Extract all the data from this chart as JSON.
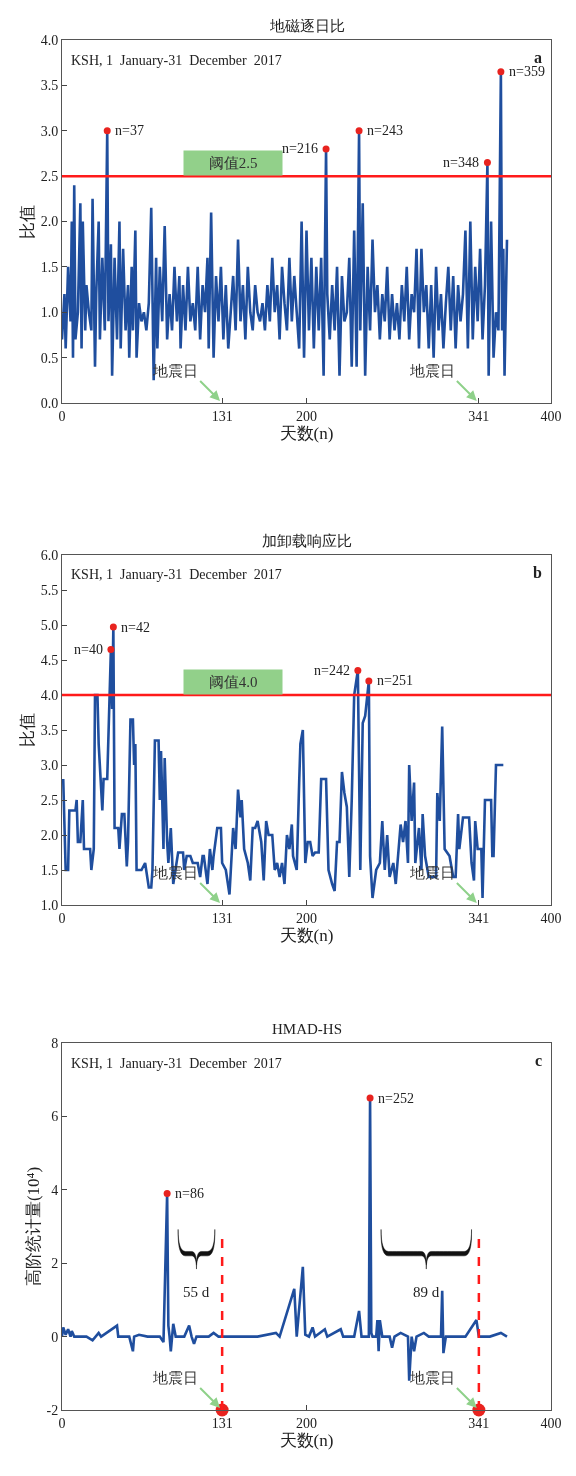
{
  "chart_data": [
    {
      "type": "line",
      "title": "地磁逐日比",
      "xlabel": "天数(n)",
      "ylabel": "比值",
      "xlim": [
        0,
        400
      ],
      "xticks": [
        0,
        131,
        200,
        341,
        400
      ],
      "ylim": [
        0,
        4
      ],
      "yticks": [
        {
          "value": 0,
          "label": "0.0"
        },
        0.5,
        {
          "value": 1,
          "label": "1.0"
        },
        1.5,
        {
          "value": 2,
          "label": "2.0"
        },
        2.5,
        {
          "value": 3,
          "label": "3.0"
        },
        3.5,
        {
          "value": 4,
          "label": "4.0"
        }
      ],
      "series": [
        {
          "color": "#1f4e9e",
          "marker": "none",
          "x": [
            0,
            2,
            3,
            5,
            7,
            8,
            9,
            10,
            11,
            13,
            15,
            16,
            17,
            19,
            20,
            22,
            24,
            25,
            27,
            28,
            30,
            31,
            33,
            35,
            37,
            38,
            40,
            41,
            43,
            45,
            47,
            48,
            50,
            52,
            54,
            55,
            57,
            58,
            60,
            61,
            63,
            65,
            67,
            69,
            71,
            73,
            75,
            77,
            78,
            80,
            82,
            84,
            86,
            88,
            90,
            92,
            94,
            96,
            97,
            99,
            101,
            103,
            105,
            107,
            109,
            111,
            113,
            115,
            117,
            119,
            120,
            122,
            124,
            126,
            128,
            130,
            132,
            134,
            136,
            138,
            140,
            142,
            144,
            146,
            148,
            150,
            152,
            154,
            156,
            158,
            160,
            162,
            164,
            166,
            168,
            170,
            172,
            174,
            176,
            178,
            180,
            182,
            184,
            186,
            188,
            190,
            192,
            194,
            196,
            198,
            200,
            202,
            204,
            206,
            208,
            210,
            212,
            214,
            216,
            217,
            219,
            221,
            223,
            225,
            227,
            229,
            231,
            233,
            235,
            237,
            239,
            241,
            243,
            244,
            246,
            248,
            250,
            252,
            254,
            256,
            258,
            260,
            262,
            264,
            266,
            268,
            270,
            272,
            274,
            276,
            278,
            280,
            282,
            284,
            286,
            288,
            290,
            292,
            294,
            296,
            298,
            300,
            302,
            304,
            306,
            308,
            310,
            312,
            314,
            316,
            318,
            320,
            322,
            324,
            326,
            328,
            330,
            332,
            334,
            336,
            338,
            340,
            342,
            344,
            346,
            348,
            349,
            351,
            353,
            355,
            357,
            359,
            360,
            361,
            362,
            364
          ],
          "values": [
            0.7,
            1.2,
            0.6,
            1.5,
            0.9,
            2.0,
            0.5,
            2.4,
            0.7,
            1.0,
            2.2,
            0.6,
            2.0,
            0.8,
            1.3,
            1.0,
            0.8,
            2.25,
            0.4,
            1.2,
            2.0,
            0.7,
            1.6,
            0.8,
            3.0,
            0.9,
            1.75,
            0.3,
            1.6,
            0.7,
            2.0,
            0.6,
            1.7,
            0.8,
            1.3,
            0.5,
            1.5,
            0.8,
            1.9,
            0.5,
            1.1,
            0.9,
            1.0,
            0.8,
            1.1,
            2.15,
            0.25,
            1.6,
            0.6,
            1.5,
            0.9,
            1.95,
            0.7,
            1.2,
            0.8,
            1.5,
            0.9,
            1.4,
            0.6,
            1.3,
            0.8,
            1.5,
            0.9,
            1.1,
            0.8,
            1.5,
            0.7,
            1.3,
            1.0,
            1.6,
            0.6,
            2.1,
            0.5,
            1.4,
            0.9,
            1.5,
            0.7,
            1.3,
            0.6,
            1.0,
            1.4,
            0.8,
            1.8,
            0.9,
            1.3,
            0.7,
            1.5,
            1.0,
            0.8,
            1.3,
            1.0,
            0.9,
            1.1,
            0.8,
            1.3,
            0.9,
            1.6,
            1.0,
            1.3,
            0.7,
            1.5,
            1.1,
            0.8,
            1.6,
            0.9,
            1.4,
            1.0,
            0.6,
            2.0,
            0.5,
            1.9,
            0.8,
            1.6,
            0.6,
            1.5,
            0.8,
            1.6,
            0.3,
            2.8,
            1.2,
            0.7,
            1.3,
            0.8,
            1.5,
            0.3,
            1.4,
            0.9,
            1.0,
            1.6,
            0.4,
            1.9,
            0.4,
            3.0,
            0.8,
            2.2,
            0.3,
            1.5,
            0.8,
            1.8,
            1.0,
            1.3,
            0.7,
            1.2,
            0.9,
            1.5,
            0.7,
            1.2,
            0.8,
            1.1,
            0.7,
            1.3,
            0.9,
            1.5,
            0.7,
            1.2,
            1.0,
            1.7,
            0.6,
            1.7,
            1.0,
            1.3,
            0.6,
            1.3,
            0.5,
            1.5,
            0.8,
            1.2,
            0.6,
            1.1,
            1.5,
            0.8,
            1.4,
            0.6,
            1.3,
            0.9,
            1.2,
            1.9,
            0.6,
            2.0,
            0.7,
            1.5,
            0.9,
            1.7,
            0.7,
            1.3,
            2.65,
            0.3,
            2.0,
            0.5,
            1.0,
            0.8,
            3.65,
            0.8,
            1.7,
            0.3,
            1.8
          ]
        },
        {
          "type": "scatter",
          "color": "#e8231f",
          "marker": "circle",
          "x": [
            37,
            216,
            243,
            348,
            359
          ],
          "values": [
            3.0,
            2.8,
            3.0,
            2.65,
            3.65
          ]
        }
      ],
      "ref_lines": [
        {
          "axis": "y",
          "value": 2.5,
          "label": "阈值2.5",
          "color": "#ff1a1a"
        }
      ],
      "annotations": [
        "KSH, 1  January-31  December  2017",
        "a",
        {
          "text": "n=37",
          "x": 37,
          "y": 3.0
        },
        {
          "text": "n=216",
          "x": 216,
          "y": 2.8
        },
        {
          "text": "n=243",
          "x": 243,
          "y": 3.0
        },
        {
          "text": "n=348",
          "x": 348,
          "y": 2.65
        },
        {
          "text": "n=359",
          "x": 359,
          "y": 3.65
        },
        "地震日",
        "地震日"
      ]
    },
    {
      "type": "line",
      "title": "加卸载响应比",
      "xlabel": "天数(n)",
      "ylabel": "比值",
      "xlim": [
        0,
        400
      ],
      "xticks": [
        0,
        131,
        200,
        341,
        400
      ],
      "ylim": [
        1,
        6
      ],
      "yticks": [
        {
          "value": 1,
          "label": "1.0"
        },
        1.5,
        {
          "value": 2,
          "label": "2.0"
        },
        2.5,
        {
          "value": 3,
          "label": "3.0"
        },
        3.5,
        {
          "value": 4,
          "label": "4.0"
        },
        4.5,
        {
          "value": 5,
          "label": "5.0"
        },
        5.5,
        {
          "value": 6,
          "label": "6.0"
        }
      ],
      "series": [
        {
          "color": "#1f4e9e",
          "marker": "none",
          "x": [
            1,
            3,
            5,
            6,
            11,
            12,
            13,
            15,
            17,
            18,
            23,
            24,
            26,
            27,
            29,
            30,
            33,
            34,
            37,
            40,
            41,
            42,
            43,
            46,
            47,
            49,
            51,
            53,
            54,
            56,
            58,
            59,
            60,
            61,
            65,
            68,
            71,
            73,
            74,
            76,
            79,
            80,
            81,
            83,
            84,
            86,
            87,
            89,
            91,
            95,
            99,
            100,
            102,
            105,
            107,
            111,
            113,
            115,
            116,
            119,
            121,
            123,
            124,
            127,
            130,
            131,
            134,
            137,
            140,
            142,
            144,
            146,
            147,
            149,
            152,
            154,
            156,
            158,
            160,
            163,
            165,
            167,
            169,
            172,
            174,
            176,
            178,
            180,
            182,
            184,
            186,
            188,
            189,
            192,
            194,
            195,
            197,
            199,
            201,
            203,
            205,
            207,
            210,
            212,
            216,
            218,
            221,
            223,
            225,
            227,
            229,
            231,
            233,
            235,
            237,
            239,
            242,
            244,
            246,
            248,
            251,
            252,
            254,
            257,
            260,
            262,
            264,
            266,
            268,
            271,
            273,
            277,
            279,
            281,
            283,
            284,
            286,
            288,
            289,
            292,
            294,
            295,
            297,
            300,
            303,
            306,
            307,
            309,
            311,
            313,
            317,
            320,
            322,
            324,
            325,
            328,
            333,
            335,
            337,
            338,
            340,
            343,
            344,
            346,
            351,
            352,
            353,
            355,
            361
          ],
          "values": [
            2.8,
            1.5,
            1.5,
            2.35,
            2.35,
            2.5,
            1.9,
            1.9,
            2.5,
            1.8,
            1.8,
            1.5,
            1.8,
            4.0,
            4.0,
            3.3,
            2.35,
            2.8,
            2.8,
            4.65,
            3.8,
            4.97,
            2.1,
            2.1,
            1.8,
            2.3,
            2.3,
            1.55,
            1.9,
            3.65,
            3.65,
            3.0,
            3.3,
            1.5,
            1.5,
            1.6,
            1.25,
            1.25,
            1.5,
            3.35,
            3.35,
            2.5,
            3.2,
            1.8,
            3.1,
            1.9,
            1.6,
            2.1,
            1.3,
            1.75,
            1.75,
            1.5,
            1.7,
            1.7,
            1.6,
            1.6,
            1.4,
            1.7,
            1.7,
            1.3,
            1.8,
            1.5,
            1.7,
            2.1,
            2.1,
            1.6,
            1.5,
            1.15,
            2.1,
            1.8,
            2.65,
            2.25,
            2.5,
            1.8,
            1.6,
            1.35,
            2.1,
            2.1,
            2.2,
            1.9,
            1.35,
            2.2,
            2.0,
            2.0,
            1.5,
            1.6,
            1.4,
            1.6,
            1.3,
            2.0,
            1.8,
            2.15,
            1.7,
            1.5,
            2.75,
            3.3,
            3.5,
            1.6,
            1.9,
            1.9,
            1.7,
            1.75,
            1.75,
            2.8,
            2.8,
            1.5,
            1.3,
            1.2,
            1.9,
            1.9,
            2.9,
            2.6,
            2.4,
            1.4,
            2.5,
            4.0,
            4.35,
            1.5,
            3.6,
            3.7,
            4.2,
            1.7,
            1.1,
            1.5,
            1.6,
            2.2,
            1.5,
            2.0,
            1.4,
            1.6,
            1.3,
            2.15,
            1.9,
            2.2,
            1.6,
            3.0,
            2.2,
            2.75,
            1.6,
            2.1,
            1.5,
            2.3,
            1.7,
            1.4,
            1.4,
            1.4,
            2.6,
            2.2,
            3.55,
            1.8,
            1.7,
            1.4,
            1.4,
            2.3,
            1.8,
            2.25,
            2.25,
            1.6,
            1.35,
            2.2,
            1.8,
            1.8,
            1.1,
            2.5,
            2.5,
            1.7,
            1.7,
            3.0,
            3.0
          ]
        },
        {
          "type": "scatter",
          "color": "#e8231f",
          "marker": "circle",
          "x": [
            40,
            42,
            242,
            251
          ],
          "values": [
            4.65,
            4.97,
            4.35,
            4.2
          ]
        }
      ],
      "ref_lines": [
        {
          "axis": "y",
          "value": 4.0,
          "label": "阈值4.0",
          "color": "#ff1a1a"
        }
      ],
      "annotations": [
        "KSH, 1  January-31  December  2017",
        "b",
        {
          "text": "n=40",
          "x": 40,
          "y": 4.65
        },
        {
          "text": "n=42",
          "x": 42,
          "y": 4.97
        },
        {
          "text": "n=242",
          "x": 242,
          "y": 4.35
        },
        {
          "text": "n=251",
          "x": 251,
          "y": 4.2
        },
        "地震日",
        "地震日"
      ]
    },
    {
      "type": "line",
      "title": "HMAD-HS",
      "xlabel": "天数(n)",
      "ylabel": "高阶统计量(10⁴)",
      "xlim": [
        0,
        400
      ],
      "xticks": [
        0,
        131,
        200,
        341,
        400
      ],
      "ylim": [
        -2,
        8
      ],
      "yticks": [
        -2,
        0,
        2,
        4,
        6,
        8
      ],
      "series": [
        {
          "color": "#1f4e9e",
          "marker": "none",
          "x": [
            0,
            1,
            3,
            5,
            7,
            8,
            10,
            20,
            25,
            30,
            32,
            45,
            46,
            55,
            58,
            59,
            63,
            70,
            80,
            83,
            86,
            87,
            88,
            89,
            91,
            93,
            100,
            104,
            106,
            108,
            110,
            120,
            124,
            128,
            132,
            146,
            160,
            175,
            178,
            190,
            192,
            197,
            199,
            202,
            205,
            207,
            215,
            217,
            228,
            230,
            239,
            243,
            245,
            251,
            252,
            253,
            254,
            257,
            258,
            259,
            260,
            262,
            268,
            270,
            272,
            277,
            283,
            284,
            286,
            288,
            290,
            296,
            300,
            310,
            311,
            312,
            314,
            320,
            330,
            339,
            341,
            350,
            359,
            364
          ],
          "values": [
            0.0,
            0.25,
            0.05,
            0.2,
            0.0,
            0.15,
            0.0,
            0.0,
            -0.1,
            0.1,
            0.0,
            0.3,
            0.0,
            0.0,
            -0.4,
            0.0,
            0.05,
            0.0,
            0.0,
            -0.15,
            3.9,
            0.3,
            0.0,
            -0.4,
            0.35,
            0.0,
            0.0,
            0.3,
            0.0,
            -0.2,
            0.0,
            0.0,
            0.1,
            0.0,
            0.0,
            0.0,
            0.0,
            0.1,
            0.0,
            1.3,
            0.0,
            1.9,
            0.05,
            0.0,
            0.25,
            0.0,
            0.2,
            0.0,
            0.2,
            0.0,
            0.0,
            0.7,
            0.0,
            0.0,
            6.5,
            0.1,
            0.0,
            0.0,
            0.45,
            -0.4,
            0.45,
            0.0,
            0.0,
            -0.3,
            0.0,
            0.1,
            0.0,
            -1.2,
            0.0,
            -0.4,
            0.0,
            0.1,
            0.0,
            0.0,
            1.25,
            -0.45,
            0.0,
            0.0,
            0.0,
            0.45,
            0.0,
            0.0,
            0.1,
            0.0
          ]
        },
        {
          "type": "scatter",
          "color": "#e8231f",
          "marker": "circle",
          "x": [
            86,
            252
          ],
          "values": [
            3.9,
            6.5
          ]
        },
        {
          "type": "scatter",
          "color": "#e8231f",
          "marker": "circle",
          "x": [
            131,
            341
          ],
          "values": [
            -2,
            -2
          ]
        }
      ],
      "ref_lines": [
        {
          "axis": "x",
          "value": 131,
          "color": "#ff1a1a",
          "line_style": "dashed"
        },
        {
          "axis": "x",
          "value": 341,
          "color": "#ff1a1a",
          "line_style": "dashed"
        }
      ],
      "annotations": [
        "KSH, 1  January-31  December  2017",
        "c",
        {
          "text": "n=86",
          "x": 86,
          "y": 3.9
        },
        {
          "text": "n=252",
          "x": 252,
          "y": 6.5
        },
        "55 d",
        "89 d",
        "地震日",
        "地震日"
      ]
    }
  ]
}
